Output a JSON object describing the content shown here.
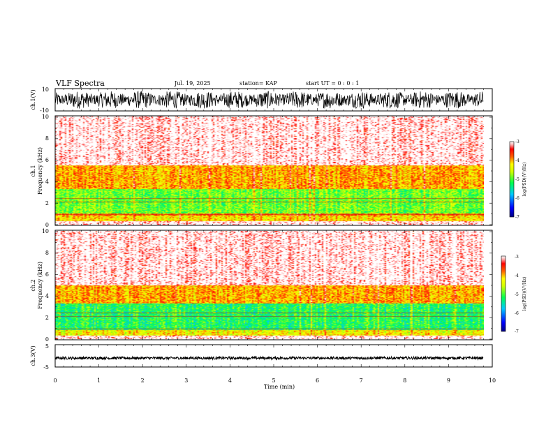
{
  "header": {
    "title": "VLF Spectra",
    "date": "Jul. 19, 2025",
    "station": "station= KAP",
    "start_ut": "start UT =  0 : 0 : 1"
  },
  "colors": {
    "waveform": "#000000",
    "colormap": [
      "#00007f",
      "#0000ff",
      "#00bfff",
      "#00ff66",
      "#bfff00",
      "#ffff00",
      "#ff8000",
      "#ff0000",
      "#ffd0d0",
      "#ffffff"
    ]
  },
  "chart_data": [
    {
      "type": "line",
      "name": "ch1-waveform",
      "ylabel": "ch.1(V)",
      "ylim": [
        -10,
        10
      ],
      "y_ticks": [
        "10",
        "-10"
      ],
      "xlim": [
        0,
        10
      ],
      "x_data_end": 9.8,
      "approx_envelope": [
        -8,
        8
      ]
    },
    {
      "type": "heatmap",
      "name": "ch1-spectrogram",
      "ylabel": "ch.1\nFrequency (kHz)",
      "ylim": [
        0,
        10
      ],
      "y_ticks": [
        "0",
        "2",
        "4",
        "6",
        "8",
        "10"
      ],
      "xlim": [
        0,
        10
      ],
      "x_data_end": 9.8,
      "colorbar": {
        "label": "log(PSD)(V²/Hz)",
        "range": [
          -7,
          -3
        ],
        "ticks": [
          "-3",
          "-4",
          "-5",
          "-6",
          "-7"
        ]
      },
      "approx_band_level": [
        {
          "freq": [
            0,
            0.3
          ],
          "log_psd": -3.2
        },
        {
          "freq": [
            0.3,
            0.8
          ],
          "log_psd": -4.2
        },
        {
          "freq": [
            0.8,
            1.0
          ],
          "log_psd": -3.8
        },
        {
          "freq": [
            1.0,
            3.3
          ],
          "log_psd": -4.9
        },
        {
          "freq": [
            3.3,
            5.5
          ],
          "log_psd": -4.0
        },
        {
          "freq": [
            5.5,
            10
          ],
          "log_psd": -3.2
        }
      ]
    },
    {
      "type": "heatmap",
      "name": "ch2-spectrogram",
      "ylabel": "ch.2\nFrequency (kHz)",
      "ylim": [
        0,
        10
      ],
      "y_ticks": [
        "0",
        "2",
        "4",
        "6",
        "8",
        "10"
      ],
      "xlim": [
        0,
        10
      ],
      "x_data_end": 9.8,
      "colorbar": {
        "label": "log(PSD)(V²/Hz)",
        "range": [
          -7,
          -3
        ],
        "ticks": [
          "-3",
          "-4",
          "-5",
          "-6",
          "-7"
        ]
      },
      "approx_band_level": [
        {
          "freq": [
            0,
            0.3
          ],
          "log_psd": -3.2
        },
        {
          "freq": [
            0.3,
            0.8
          ],
          "log_psd": -4.3
        },
        {
          "freq": [
            0.8,
            3.3
          ],
          "log_psd": -5.2
        },
        {
          "freq": [
            3.3,
            5.0
          ],
          "log_psd": -4.0
        },
        {
          "freq": [
            5.0,
            10
          ],
          "log_psd": -3.2
        }
      ]
    },
    {
      "type": "line",
      "name": "ch3-waveform",
      "ylabel": "ch.3(V)",
      "ylim": [
        -5,
        5
      ],
      "y_ticks": [
        "5",
        "-5"
      ],
      "xlim": [
        0,
        10
      ],
      "x_data_end": 9.8,
      "approx_envelope": [
        -1.6,
        -0.4
      ],
      "xlabel": "Time (min)",
      "x_ticks": [
        "0",
        "1",
        "2",
        "3",
        "4",
        "5",
        "6",
        "7",
        "8",
        "9",
        "10"
      ]
    }
  ]
}
